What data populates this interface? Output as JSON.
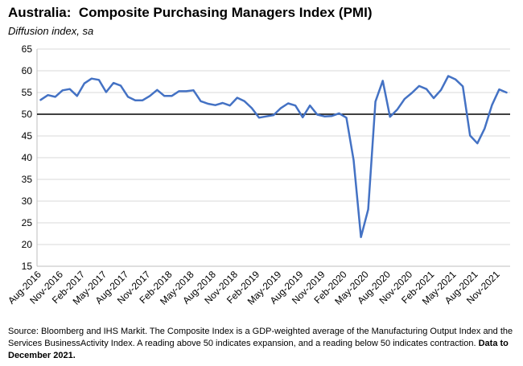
{
  "title": "Australia:  Composite Purchasing Managers Index (PMI)",
  "subtitle": "Diffusion index, sa",
  "source_text": "Source: Bloomberg and IHS Markit. The Composite Index is a GDP-weighted average of the Manufacturing Output Index and the Services BusinessActivity Index.  A reading above 50 indicates expansion, and a reading below 50 indicates contraction.",
  "source_bold": "Data to December 2021.",
  "colors": {
    "line": "#4472C4",
    "grid": "#d9d9d9",
    "reference": "#000000"
  },
  "chart_data": {
    "type": "line",
    "title": "Australia:  Composite Purchasing Managers Index (PMI)",
    "ylabel": "Diffusion index, sa",
    "ylim": [
      15,
      65
    ],
    "yticks": [
      15,
      20,
      25,
      30,
      35,
      40,
      45,
      50,
      55,
      60,
      65
    ],
    "reference_line": 50,
    "grid": true,
    "x_start": "Aug-2016",
    "x_end": "Dec-2021",
    "xtick_labels": [
      "Aug-2016",
      "Nov-2016",
      "Feb-2017",
      "May-2017",
      "Aug-2017",
      "Nov-2017",
      "Feb-2018",
      "May-2018",
      "Aug-2018",
      "Nov-2018",
      "Feb-2019",
      "May-2019",
      "Aug-2019",
      "Nov-2019",
      "Feb-2020",
      "May-2020",
      "Aug-2020",
      "Nov-2020",
      "Feb-2021",
      "May-2021",
      "Aug-2021",
      "Nov-2021"
    ],
    "series": [
      {
        "values": [
          53.3,
          54.4,
          54.0,
          55.5,
          55.8,
          54.2,
          57.1,
          58.2,
          57.9,
          55.1,
          57.2,
          56.6,
          54.0,
          53.2,
          53.2,
          54.2,
          55.6,
          54.2,
          54.2,
          55.3,
          55.3,
          55.5,
          53.0,
          52.4,
          52.1,
          52.6,
          52.0,
          53.8,
          53.0,
          51.4,
          49.2,
          49.5,
          49.8,
          51.4,
          52.5,
          52.0,
          49.3,
          52.0,
          49.9,
          49.5,
          49.6,
          50.2,
          49.2,
          39.4,
          21.7,
          28.1,
          52.9,
          57.7,
          49.4,
          51.1,
          53.5,
          54.9,
          56.5,
          55.8,
          53.7,
          55.6,
          58.8,
          58.0,
          56.4,
          45.1,
          43.3,
          46.7,
          52.1,
          55.7,
          55.0
        ]
      }
    ]
  }
}
